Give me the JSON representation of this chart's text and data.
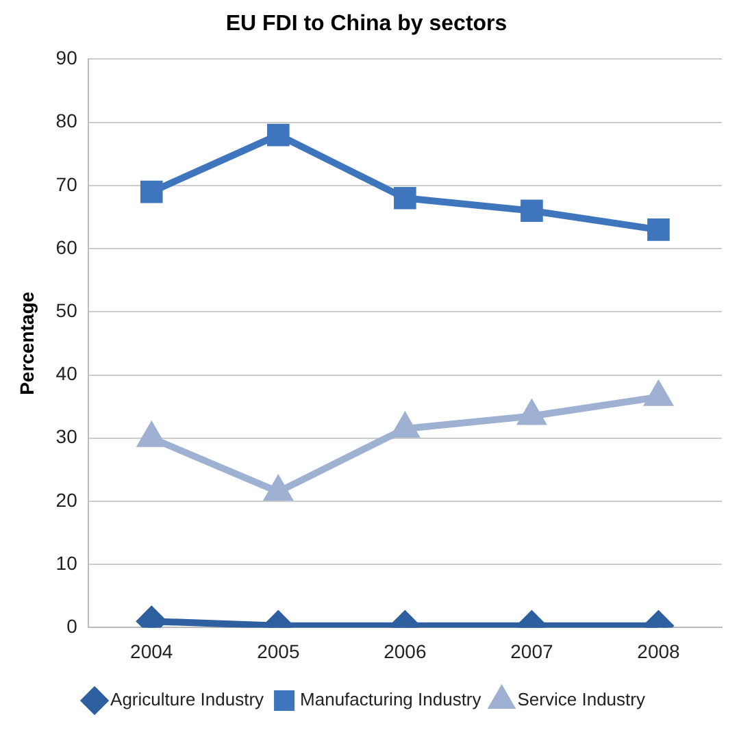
{
  "chart_data": {
    "type": "line",
    "title": "EU FDI to China by sectors",
    "ylabel": "Percentage",
    "categories": [
      "2004",
      "2005",
      "2006",
      "2007",
      "2008"
    ],
    "series": [
      {
        "name": "Agriculture Industry",
        "color": "#2e5f9e",
        "marker": "diamond",
        "values": [
          1,
          0.3,
          0.3,
          0.3,
          0.3
        ]
      },
      {
        "name": "Manufacturing Industry",
        "color": "#3f75bd",
        "marker": "square",
        "values": [
          69,
          78,
          68,
          66,
          63
        ]
      },
      {
        "name": "Service Industry",
        "color": "#9eb1d3",
        "marker": "triangle",
        "values": [
          30,
          21.5,
          31.5,
          33.5,
          36.5
        ]
      }
    ],
    "ylim": [
      0,
      90
    ],
    "yticks": [
      0,
      10,
      20,
      30,
      40,
      50,
      60,
      70,
      80,
      90
    ],
    "grid": "y",
    "legend": "bottom",
    "line_style": "solid"
  }
}
